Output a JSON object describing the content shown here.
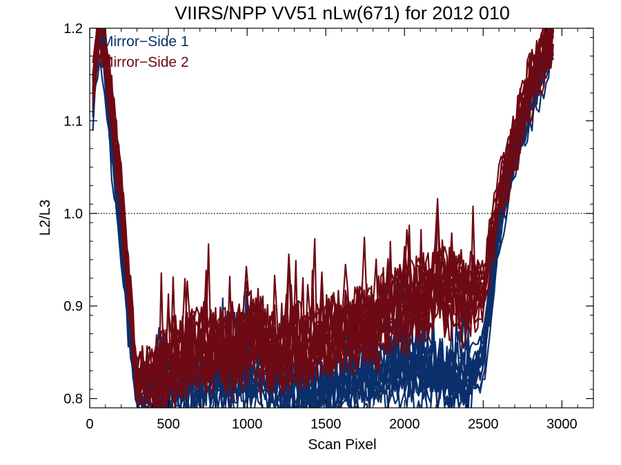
{
  "chart_data": {
    "type": "line",
    "title": "VIIRS/NPP VV51 nLw(671) for 2012 010",
    "xlabel": "Scan Pixel",
    "ylabel": "L2/L3",
    "xlim": [
      0,
      3200
    ],
    "ylim": [
      0.79,
      1.2
    ],
    "xticks": [
      0,
      500,
      1000,
      1500,
      2000,
      2500,
      3000
    ],
    "xtick_labels": [
      "0",
      "500",
      "1000",
      "1500",
      "2000",
      "2500",
      "3000"
    ],
    "yticks": [
      0.8,
      0.9,
      1.0,
      1.1,
      1.2
    ],
    "ytick_labels": [
      "0.8",
      "0.9",
      "1.0",
      "1.1",
      "1.2"
    ],
    "reference_line": {
      "y": 1.0,
      "style": "dotted"
    },
    "grid": false,
    "legend_position": "top-left",
    "series": [
      {
        "name": "Mirror−Side 1",
        "color": "#0b2f6b",
        "approx_profile": {
          "x": [
            20,
            60,
            100,
            150,
            200,
            250,
            300,
            500,
            700,
            900,
            1000,
            1200,
            1400,
            1600,
            1800,
            2000,
            2200,
            2400,
            2500,
            2600,
            2700,
            2800,
            2900,
            2950
          ],
          "y": [
            1.12,
            1.2,
            1.15,
            1.05,
            0.97,
            0.88,
            0.8,
            0.8,
            0.81,
            0.82,
            0.82,
            0.81,
            0.8,
            0.81,
            0.82,
            0.83,
            0.82,
            0.81,
            0.84,
            0.98,
            1.06,
            1.12,
            1.16,
            1.2
          ]
        }
      },
      {
        "name": "Mirror−Side 2",
        "color": "#6e0a14",
        "approx_profile": {
          "x": [
            20,
            60,
            100,
            150,
            200,
            250,
            300,
            500,
            700,
            900,
            1000,
            1200,
            1400,
            1600,
            1800,
            2000,
            2200,
            2400,
            2500,
            2600,
            2700,
            2800,
            2900,
            2950
          ],
          "y": [
            1.14,
            1.2,
            1.18,
            1.1,
            1.02,
            0.92,
            0.82,
            0.83,
            0.86,
            0.85,
            0.87,
            0.85,
            0.86,
            0.87,
            0.88,
            0.9,
            0.92,
            0.91,
            0.92,
            1.02,
            1.08,
            1.14,
            1.18,
            1.2
          ]
        }
      }
    ]
  }
}
